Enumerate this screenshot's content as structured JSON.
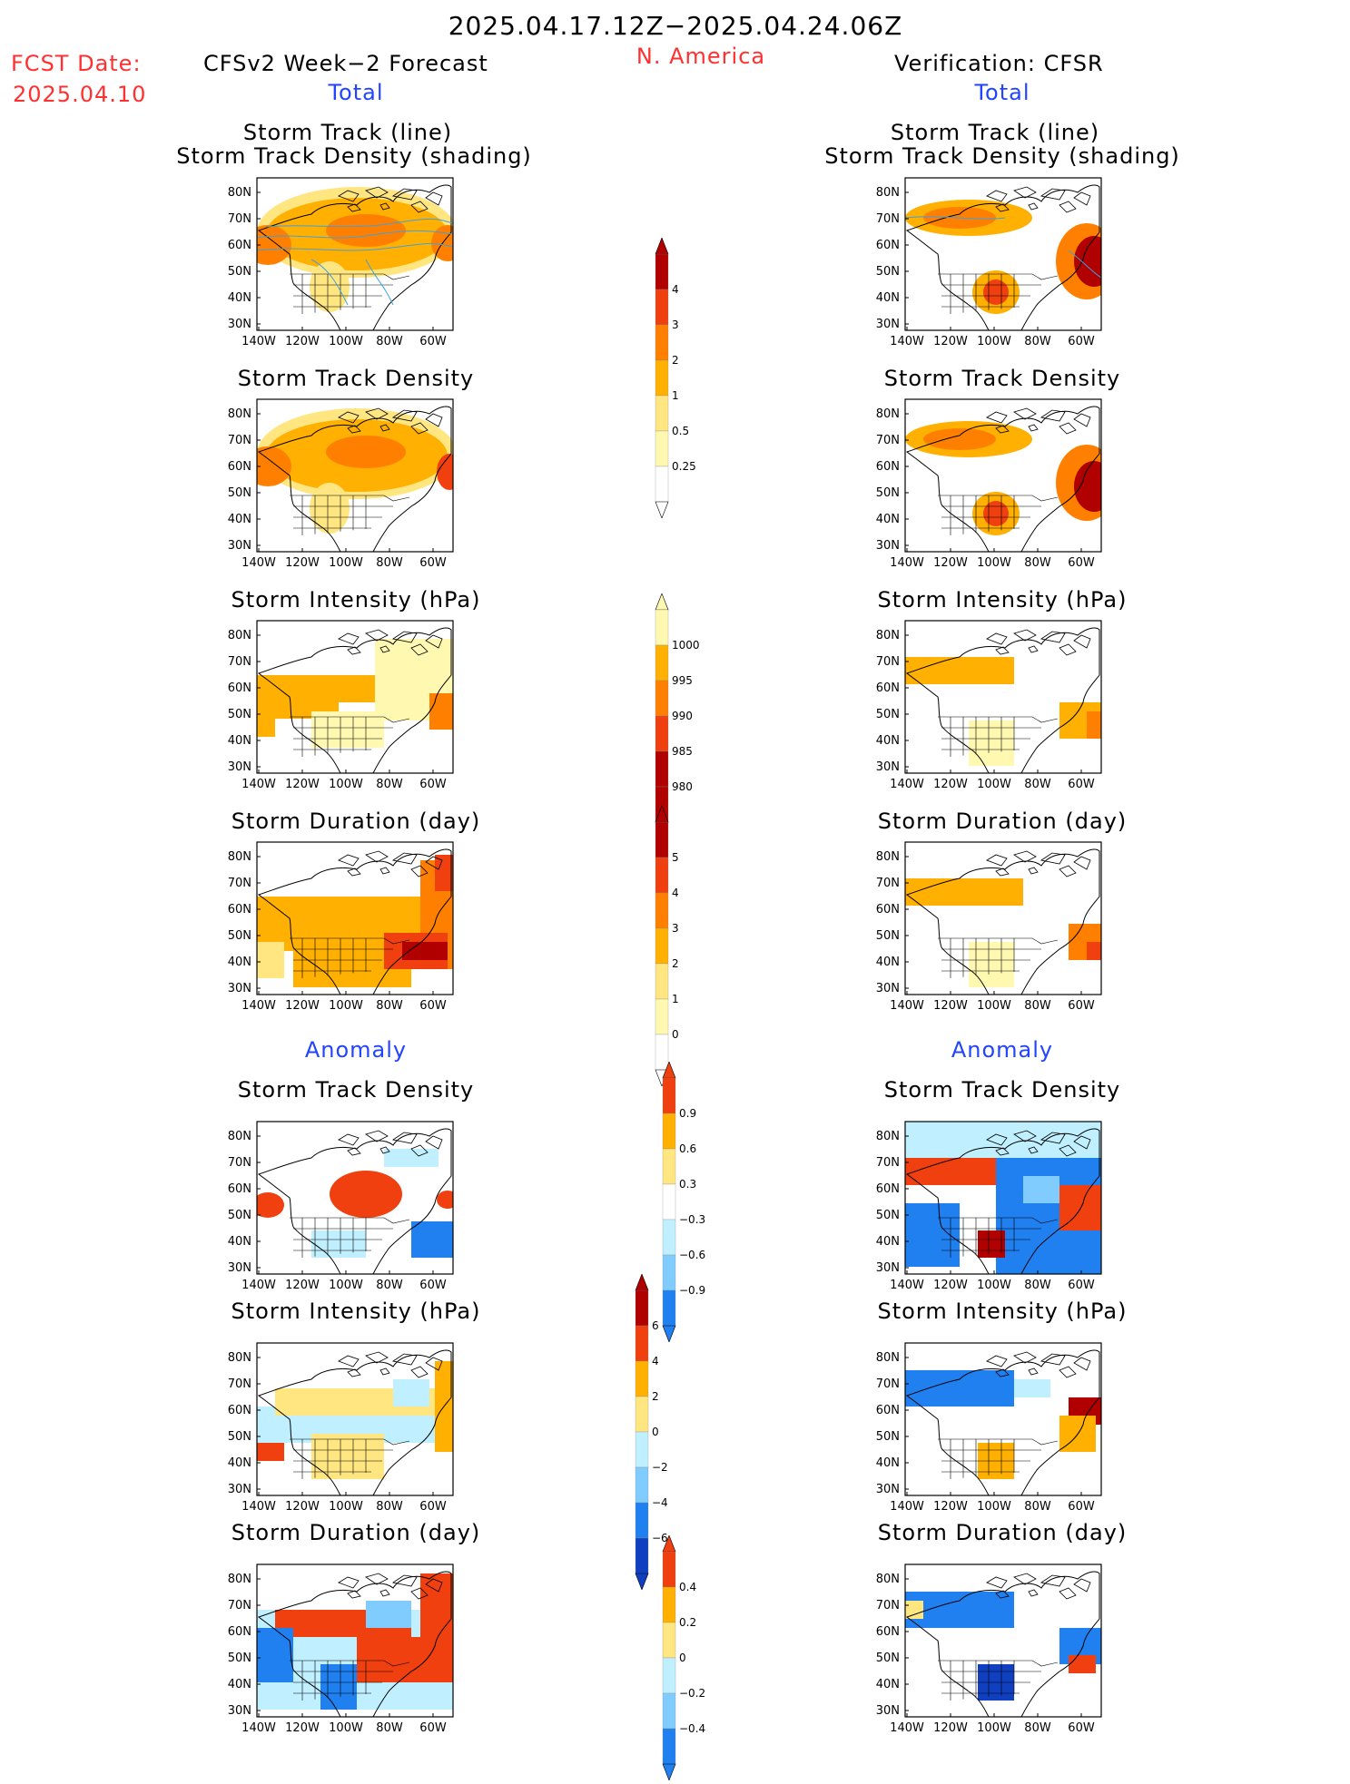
{
  "header": {
    "valid_period": "2025.04.17.12Z−2025.04.24.06Z",
    "region": "N. America",
    "fcst_label": "FCST Date:",
    "fcst_date": "2025.04.10",
    "left_title": "CFSv2 Week−2 Forecast",
    "right_title": "Verification: CFSR"
  },
  "sections": {
    "total": "Total",
    "anomaly": "Anomaly"
  },
  "panel_titles": {
    "track_line": "Storm Track (line)",
    "track_shading": "Storm Track Density (shading)",
    "density": "Storm Track Density",
    "intensity": "Storm Intensity (hPa)",
    "duration": "Storm Duration (day)"
  },
  "axes": {
    "lat_labels": [
      "80N",
      "70N",
      "60N",
      "50N",
      "40N",
      "30N"
    ],
    "lon_labels": [
      "140W",
      "120W",
      "100W",
      "80W",
      "60W"
    ]
  },
  "colorbars": {
    "density_total": [
      "4",
      "3",
      "2",
      "1",
      "0.5",
      "0.25"
    ],
    "intensity_total": [
      "1000",
      "995",
      "990",
      "985",
      "980"
    ],
    "duration_total": [
      "5",
      "4",
      "3",
      "2",
      "1",
      "0"
    ],
    "density_anom": [
      "0.9",
      "0.6",
      "0.3",
      "−0.3",
      "−0.6",
      "−0.9"
    ],
    "intensity_anom": [
      "6",
      "4",
      "2",
      "0",
      "−2",
      "−4",
      "−6"
    ],
    "duration_anom": [
      "0.4",
      "0.2",
      "0",
      "−0.2",
      "−0.4"
    ]
  },
  "colors": {
    "warm": [
      "#fff8b0",
      "#ffe680",
      "#ffb000",
      "#ff8000",
      "#f04010",
      "#b00000"
    ],
    "cool": [
      "#c0f0ff",
      "#80ccff",
      "#2080f0",
      "#1040c0"
    ],
    "track_line": "#40a0e0",
    "title_red": "#ff3030",
    "section_blue": "#2244ff"
  }
}
